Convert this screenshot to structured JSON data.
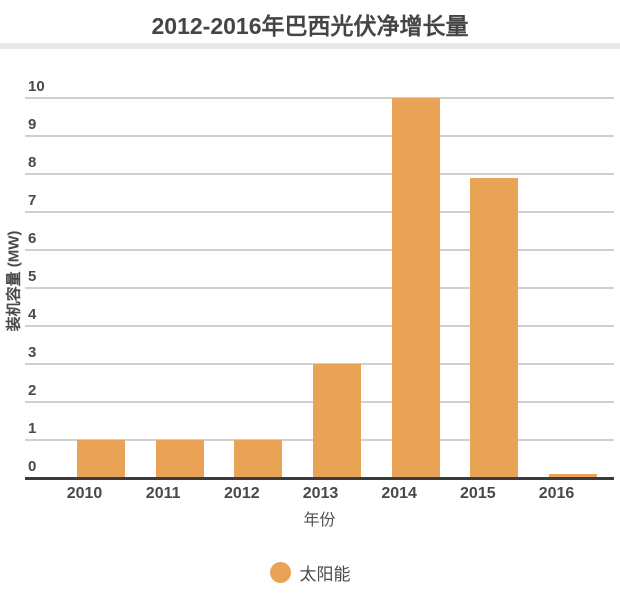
{
  "header": {
    "title": "2012-2016年巴西光伏净增长量"
  },
  "chart_data": {
    "type": "bar",
    "title": "2012-2016年巴西光伏净增长量",
    "categories": [
      "2010",
      "2011",
      "2012",
      "2013",
      "2014",
      "2015",
      "2016"
    ],
    "values": [
      1,
      1,
      1,
      3,
      10,
      7.9,
      0.1
    ],
    "series_name": "太阳能",
    "xlabel": "年份",
    "ylabel": "装机容量 (MW)",
    "ylim": [
      0,
      10
    ],
    "ytick_step": 1,
    "grid": true,
    "legend_position": "bottom",
    "bar_color": "#E9A256"
  },
  "legend": {
    "items": [
      {
        "label": "太阳能",
        "color": "#E9A256"
      }
    ]
  },
  "colors": {
    "bar": "#E9A256",
    "axis_line": "#3b3b3b",
    "grid_line": "#d0d0d0",
    "text": "#4a4a4a",
    "divider": "#e9e9e9",
    "background": "#ffffff"
  }
}
